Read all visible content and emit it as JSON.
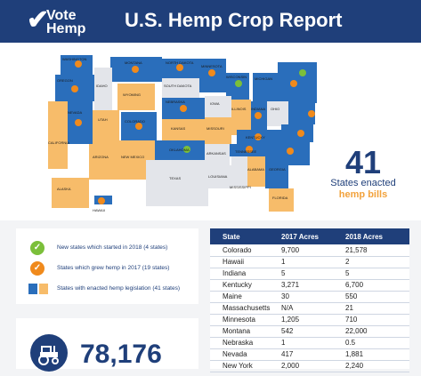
{
  "header": {
    "logo_line1": "Vote",
    "logo_line2": "Hemp",
    "title": "U.S. Hemp Crop Report"
  },
  "map": {
    "colors": {
      "enacted": "#2a6ebb",
      "grew_2017": "#f7bc6a",
      "none": "#e3e5ea",
      "new_2018": "#7bbf3a",
      "check_orange": "#f08a1c"
    },
    "state_labels": [
      "WASHINGTON",
      "MONTANA",
      "NORTH DAKOTA",
      "OREGON",
      "IDAHO",
      "SOUTH DAKOTA",
      "MINNESOTA",
      "WISCONSIN",
      "MICHIGAN",
      "WYOMING",
      "NEBRASKA",
      "IOWA",
      "ILLINOIS",
      "NEVADA",
      "UTAH",
      "COLORADO",
      "KANSAS",
      "MISSOURI",
      "INDIANA",
      "OHIO",
      "CALIFORNIA",
      "ARIZONA",
      "NEW MEXICO",
      "OKLAHOMA",
      "ARKANSAS",
      "KENTUCKY",
      "TENNESSEE",
      "TEXAS",
      "LOUISIANA",
      "MISSISSIPPI",
      "ALABAMA",
      "GEORGIA",
      "FLORIDA",
      "ALASKA",
      "HAWAII"
    ]
  },
  "stat": {
    "number": "41",
    "line1": "States enacted",
    "line2": "hemp bills"
  },
  "legend": {
    "items": [
      {
        "text": "New states which started in 2018 (4 states)",
        "icon": "check-green-icon"
      },
      {
        "text": "States which grew hemp in 2017 (19 states)",
        "icon": "check-orange-icon"
      },
      {
        "text": "States with enacted hemp legislation (41 states)",
        "icon": "swatch-icon"
      }
    ]
  },
  "table": {
    "headers": [
      "State",
      "2017 Acres",
      "2018 Acres"
    ],
    "rows": [
      [
        "Colorado",
        "9,700",
        "21,578"
      ],
      [
        "Hawaii",
        "1",
        "2"
      ],
      [
        "Indiana",
        "5",
        "5"
      ],
      [
        "Kentucky",
        "3,271",
        "6,700"
      ],
      [
        "Maine",
        "30",
        "550"
      ],
      [
        "Massachusetts",
        "N/A",
        "21"
      ],
      [
        "Minnesota",
        "1,205",
        "710"
      ],
      [
        "Montana",
        "542",
        "22,000"
      ],
      [
        "Nebraska",
        "1",
        "0.5"
      ],
      [
        "Nevada",
        "417",
        "1,881"
      ],
      [
        "New York",
        "2,000",
        "2,240"
      ]
    ]
  },
  "acres": {
    "number": "78,176",
    "icon": "tractor-icon"
  }
}
